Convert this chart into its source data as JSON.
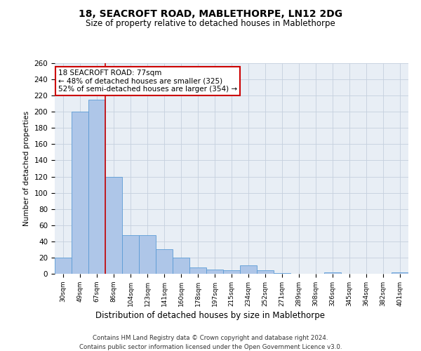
{
  "title": "18, SEACROFT ROAD, MABLETHORPE, LN12 2DG",
  "subtitle": "Size of property relative to detached houses in Mablethorpe",
  "xlabel": "Distribution of detached houses by size in Mablethorpe",
  "ylabel": "Number of detached properties",
  "categories": [
    "30sqm",
    "49sqm",
    "67sqm",
    "86sqm",
    "104sqm",
    "123sqm",
    "141sqm",
    "160sqm",
    "178sqm",
    "197sqm",
    "215sqm",
    "234sqm",
    "252sqm",
    "271sqm",
    "289sqm",
    "308sqm",
    "326sqm",
    "345sqm",
    "364sqm",
    "382sqm",
    "401sqm"
  ],
  "values": [
    20,
    200,
    215,
    120,
    48,
    48,
    30,
    20,
    8,
    5,
    4,
    10,
    4,
    1,
    0,
    0,
    2,
    0,
    0,
    0,
    2
  ],
  "bar_color": "#aec6e8",
  "bar_edge_color": "#5b9bd5",
  "vline_x_idx": 2.5,
  "vline_color": "#cc0000",
  "annotation_line1": "18 SEACROFT ROAD: 77sqm",
  "annotation_line2": "← 48% of detached houses are smaller (325)",
  "annotation_line3": "52% of semi-detached houses are larger (354) →",
  "annotation_box_color": "#ffffff",
  "annotation_box_edge": "#cc0000",
  "ylim": [
    0,
    260
  ],
  "yticks": [
    0,
    20,
    40,
    60,
    80,
    100,
    120,
    140,
    160,
    180,
    200,
    220,
    240,
    260
  ],
  "bg_color": "#e8eef5",
  "grid_color": "#c5d0de",
  "footer_line1": "Contains HM Land Registry data © Crown copyright and database right 2024.",
  "footer_line2": "Contains public sector information licensed under the Open Government Licence v3.0."
}
